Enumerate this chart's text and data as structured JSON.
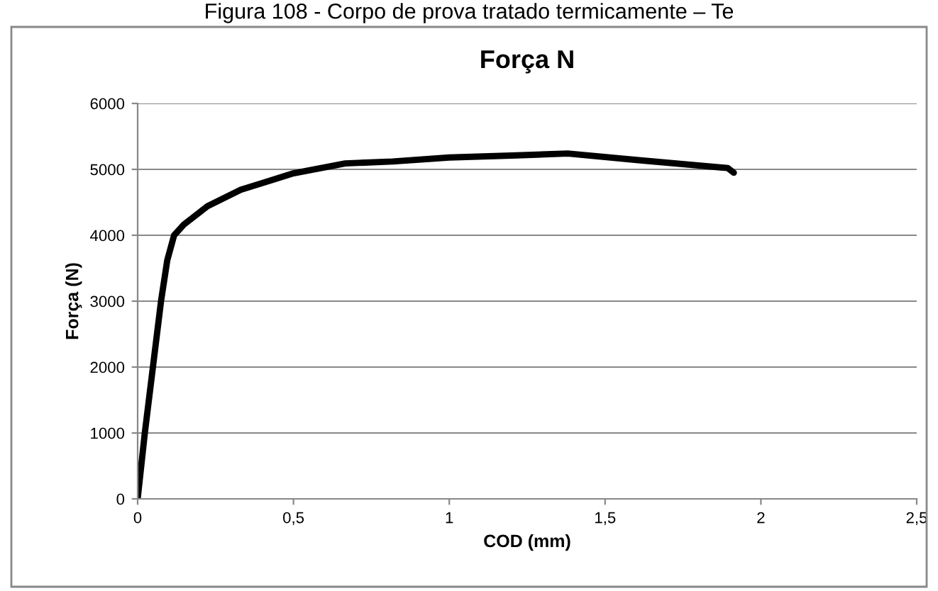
{
  "chart_data": {
    "type": "line",
    "title": "Força N",
    "xlabel": "COD (mm)",
    "ylabel": "Força (N)",
    "annotations": [
      "Figura 108 - Corpo de prova tratado termicamente – Te"
    ],
    "x": [
      0,
      0.023,
      0.049,
      0.075,
      0.095,
      0.117,
      0.148,
      0.224,
      0.331,
      0.5,
      0.666,
      0.819,
      1.0,
      1.2,
      1.38,
      1.607,
      1.894,
      1.913
    ],
    "series": [
      {
        "color": "#000000",
        "values": [
          0,
          1000,
          2000,
          3000,
          3620,
          4000,
          4160,
          4440,
          4690,
          4940,
          5090,
          5120,
          5180,
          5210,
          5240,
          5140,
          5020,
          4950
        ]
      }
    ],
    "xlim": [
      0,
      2.5
    ],
    "xticks": [
      0,
      {
        "value": 0.5,
        "label": "0,5"
      },
      1,
      {
        "value": 1.5,
        "label": "1,5"
      },
      2,
      {
        "value": 2.5,
        "label": "2,5"
      }
    ],
    "ylim": [
      0,
      6000
    ],
    "yticks": [
      0,
      1000,
      2000,
      3000,
      4000,
      5000,
      6000
    ],
    "grid": "y",
    "legend": false,
    "marker": "none",
    "line_style": "solid"
  }
}
